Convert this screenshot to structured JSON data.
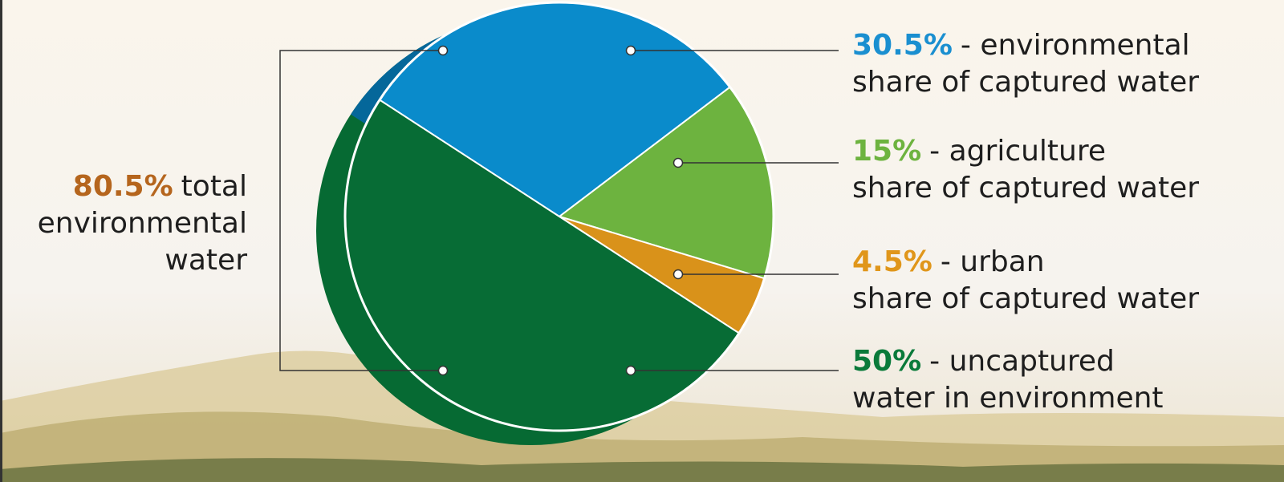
{
  "chart_data": {
    "type": "pie",
    "values": [
      30.5,
      15,
      4.5,
      50
    ],
    "value_labels": [
      "30.5%",
      "15%",
      "4.5%",
      "50%"
    ],
    "categories": [
      [
        "- environmental",
        "share of captured water"
      ],
      [
        "- agriculture",
        "share of captured water"
      ],
      [
        "- urban",
        "share of captured water"
      ],
      [
        "- uncaptured",
        "water in environment"
      ]
    ],
    "colors": [
      "#0a8bcb",
      "#6db33f",
      "#d9921a",
      "#076c35"
    ],
    "label_colors": [
      "#1a8fd0",
      "#6db33f",
      "#e0961a",
      "#0a7a3a"
    ],
    "total": {
      "value": 80.5,
      "label": "80.5%",
      "text": [
        "total",
        "environmental",
        "water"
      ],
      "color": "#b5651d"
    }
  }
}
